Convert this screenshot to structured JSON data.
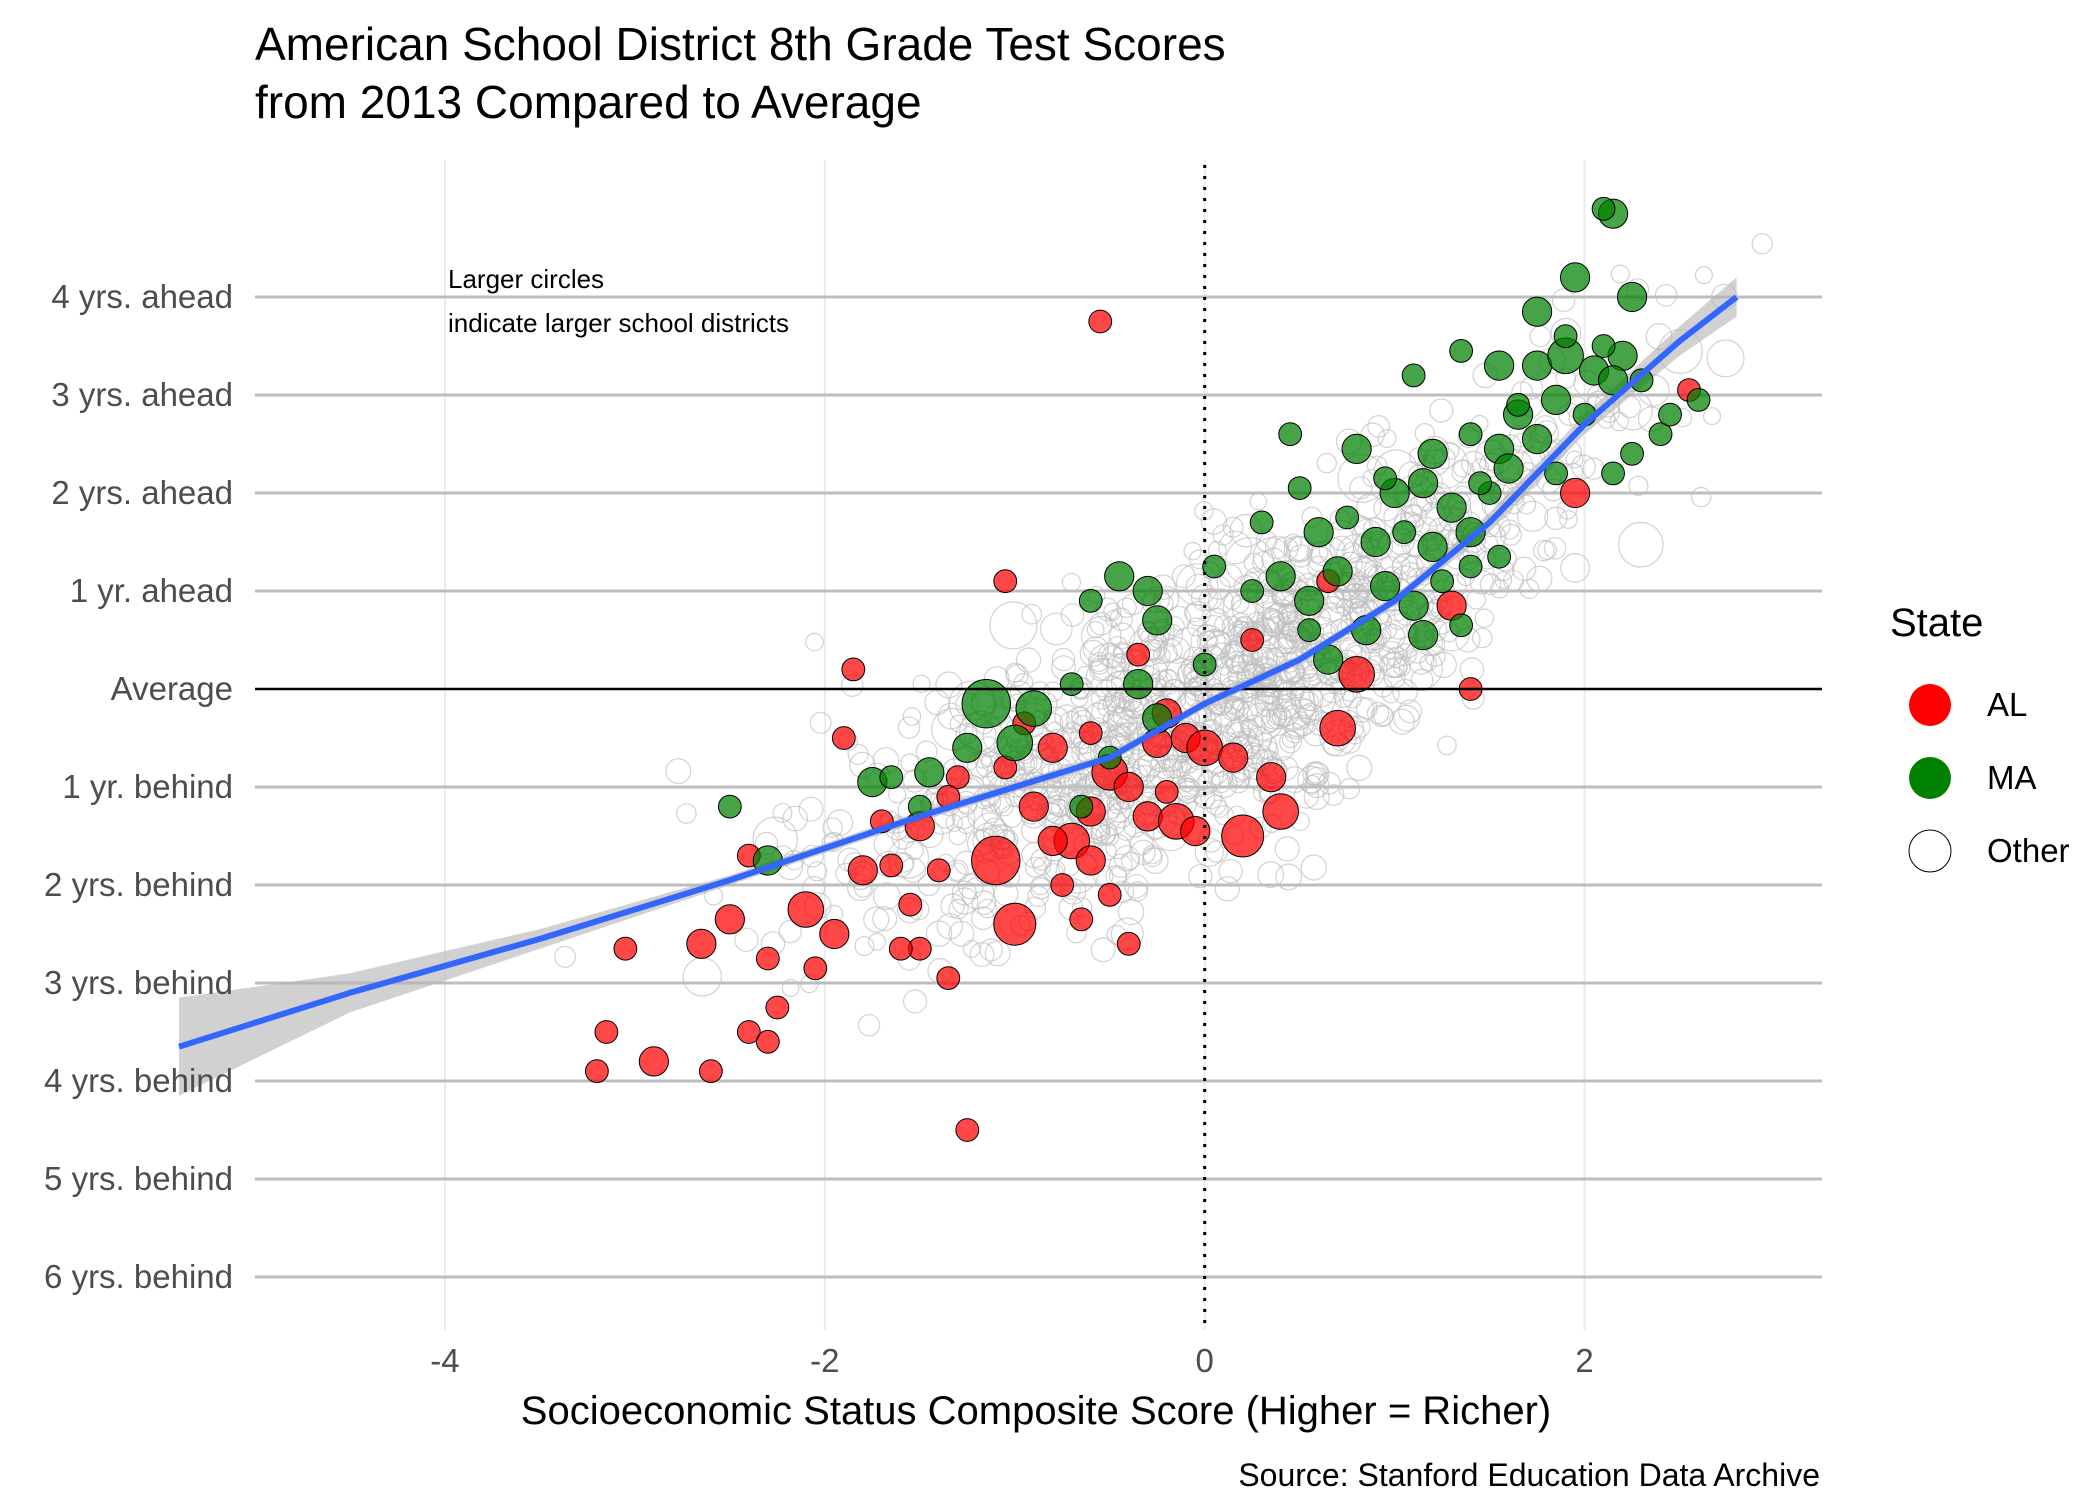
{
  "chart_data": {
    "type": "scatter",
    "title_lines": [
      "American School District 8th Grade Test Scores",
      "from 2013 Compared to Average"
    ],
    "xlabel": "Socioeconomic Status Composite Score (Higher = Richer)",
    "ylabel": "",
    "source": "Source: Stanford Education Data Archive",
    "annotation_lines": [
      "Larger circles",
      "indicate larger school districts"
    ],
    "xlim": [
      -5.0,
      3.25
    ],
    "ylim": [
      -6.6,
      5.2
    ],
    "x_ticks": [
      {
        "value": -4,
        "label": "-4"
      },
      {
        "value": -2,
        "label": "-2"
      },
      {
        "value": 0,
        "label": "0"
      },
      {
        "value": 2,
        "label": "2"
      }
    ],
    "y_ticks": [
      {
        "value": 4,
        "label": "4 yrs. ahead"
      },
      {
        "value": 3,
        "label": "3 yrs. ahead"
      },
      {
        "value": 2,
        "label": "2 yrs. ahead"
      },
      {
        "value": 1,
        "label": "1 yr. ahead"
      },
      {
        "value": 0,
        "label": "Average"
      },
      {
        "value": -1,
        "label": "1 yr. behind"
      },
      {
        "value": -2,
        "label": "2 yrs. behind"
      },
      {
        "value": -3,
        "label": "3 yrs. behind"
      },
      {
        "value": -4,
        "label": "4 yrs. behind"
      },
      {
        "value": -5,
        "label": "5 yrs. behind"
      },
      {
        "value": -6,
        "label": "6 yrs. behind"
      }
    ],
    "reference_lines": {
      "horizontal_y": 0,
      "vertical_dotted_x": 0
    },
    "grid": true,
    "legend": {
      "title": "State",
      "position": "right",
      "entries": [
        {
          "label": "AL",
          "color": "#ff0000"
        },
        {
          "label": "MA",
          "color": "#008000"
        },
        {
          "label": "Other",
          "color": "#ffffff"
        }
      ]
    },
    "colors": {
      "AL": "#ff0000",
      "MA": "#008000",
      "other_stroke": "#bfbfbf",
      "trend": "#3366ff",
      "band": "#b3b3b3"
    },
    "trend_line": {
      "x": [
        -5.4,
        -4.5,
        -3.5,
        -2.5,
        -1.5,
        -0.5,
        0.0,
        0.5,
        1.0,
        1.5,
        2.0,
        2.5,
        2.8
      ],
      "y": [
        -3.65,
        -3.1,
        -2.55,
        -1.95,
        -1.3,
        -0.7,
        -0.15,
        0.3,
        0.9,
        1.7,
        2.7,
        3.55,
        4.0
      ],
      "lower": [
        -4.15,
        -3.3,
        -2.65,
        -2.0,
        -1.35,
        -0.75,
        -0.2,
        0.25,
        0.85,
        1.6,
        2.6,
        3.4,
        3.8
      ],
      "upper": [
        -3.15,
        -2.9,
        -2.45,
        -1.9,
        -1.25,
        -0.65,
        -0.1,
        0.35,
        0.95,
        1.8,
        2.8,
        3.7,
        4.2
      ]
    },
    "series": [
      {
        "name": "AL",
        "points": [
          {
            "x": -0.55,
            "y": 3.75,
            "size": 2
          },
          {
            "x": 2.55,
            "y": 3.05,
            "size": 2
          },
          {
            "x": 1.95,
            "y": 2.0,
            "size": 3
          },
          {
            "x": 1.3,
            "y": 0.85,
            "size": 3
          },
          {
            "x": 0.8,
            "y": 0.15,
            "size": 4
          },
          {
            "x": 0.7,
            "y": -0.4,
            "size": 4
          },
          {
            "x": 1.4,
            "y": 0.0,
            "size": 2
          },
          {
            "x": 0.65,
            "y": 1.1,
            "size": 2
          },
          {
            "x": -1.85,
            "y": 0.2,
            "size": 2
          },
          {
            "x": -1.9,
            "y": -0.5,
            "size": 2
          },
          {
            "x": -2.4,
            "y": -1.7,
            "size": 2
          },
          {
            "x": -2.1,
            "y": -2.25,
            "size": 4
          },
          {
            "x": -2.5,
            "y": -2.35,
            "size": 3
          },
          {
            "x": -2.65,
            "y": -2.6,
            "size": 3
          },
          {
            "x": -1.95,
            "y": -2.5,
            "size": 3
          },
          {
            "x": -2.05,
            "y": -2.85,
            "size": 2
          },
          {
            "x": -2.3,
            "y": -2.75,
            "size": 2
          },
          {
            "x": -2.25,
            "y": -3.25,
            "size": 2
          },
          {
            "x": -2.4,
            "y": -3.5,
            "size": 2
          },
          {
            "x": -2.3,
            "y": -3.6,
            "size": 2
          },
          {
            "x": -3.15,
            "y": -3.5,
            "size": 2
          },
          {
            "x": -2.9,
            "y": -3.8,
            "size": 3
          },
          {
            "x": -3.2,
            "y": -3.9,
            "size": 2
          },
          {
            "x": -2.6,
            "y": -3.9,
            "size": 2
          },
          {
            "x": -3.05,
            "y": -2.65,
            "size": 2
          },
          {
            "x": -1.25,
            "y": -4.5,
            "size": 2
          },
          {
            "x": -1.35,
            "y": -2.95,
            "size": 2
          },
          {
            "x": -1.5,
            "y": -2.65,
            "size": 2
          },
          {
            "x": -1.1,
            "y": -1.75,
            "size": 6
          },
          {
            "x": -1.0,
            "y": -2.4,
            "size": 5
          },
          {
            "x": -0.7,
            "y": -1.55,
            "size": 4
          },
          {
            "x": -0.9,
            "y": -1.2,
            "size": 3
          },
          {
            "x": -0.6,
            "y": -1.25,
            "size": 3
          },
          {
            "x": -0.5,
            "y": -0.85,
            "size": 4
          },
          {
            "x": -0.4,
            "y": -1.0,
            "size": 3
          },
          {
            "x": -0.3,
            "y": -1.3,
            "size": 3
          },
          {
            "x": -0.2,
            "y": -1.05,
            "size": 2
          },
          {
            "x": -0.1,
            "y": -0.5,
            "size": 3
          },
          {
            "x": 0.0,
            "y": -0.6,
            "size": 4
          },
          {
            "x": 0.15,
            "y": -0.7,
            "size": 3
          },
          {
            "x": 0.2,
            "y": -1.5,
            "size": 5
          },
          {
            "x": 0.35,
            "y": -0.9,
            "size": 3
          },
          {
            "x": 0.4,
            "y": -1.25,
            "size": 4
          },
          {
            "x": -0.15,
            "y": -1.35,
            "size": 4
          },
          {
            "x": -0.05,
            "y": -1.45,
            "size": 3
          },
          {
            "x": -0.25,
            "y": -0.55,
            "size": 3
          },
          {
            "x": -0.8,
            "y": -0.6,
            "size": 3
          },
          {
            "x": -1.05,
            "y": -0.8,
            "size": 2
          },
          {
            "x": -1.3,
            "y": -0.9,
            "size": 2
          },
          {
            "x": -1.35,
            "y": -1.1,
            "size": 2
          },
          {
            "x": -1.5,
            "y": -1.4,
            "size": 3
          },
          {
            "x": -1.7,
            "y": -1.35,
            "size": 2
          },
          {
            "x": -1.8,
            "y": -1.85,
            "size": 3
          },
          {
            "x": -1.65,
            "y": -1.8,
            "size": 2
          },
          {
            "x": -1.4,
            "y": -1.85,
            "size": 2
          },
          {
            "x": -1.55,
            "y": -2.2,
            "size": 2
          },
          {
            "x": -1.6,
            "y": -2.65,
            "size": 2
          },
          {
            "x": -0.8,
            "y": -1.55,
            "size": 3
          },
          {
            "x": -0.6,
            "y": -1.75,
            "size": 3
          },
          {
            "x": -0.5,
            "y": -2.1,
            "size": 2
          },
          {
            "x": -0.75,
            "y": -2.0,
            "size": 2
          },
          {
            "x": -0.65,
            "y": -2.35,
            "size": 2
          },
          {
            "x": -0.4,
            "y": -2.6,
            "size": 2
          },
          {
            "x": -0.2,
            "y": -0.25,
            "size": 3
          },
          {
            "x": -0.35,
            "y": 0.35,
            "size": 2
          },
          {
            "x": 0.25,
            "y": 0.5,
            "size": 2
          },
          {
            "x": -0.6,
            "y": -0.45,
            "size": 2
          },
          {
            "x": -0.95,
            "y": -0.35,
            "size": 2
          },
          {
            "x": -1.05,
            "y": 1.1,
            "size": 2
          }
        ]
      },
      {
        "name": "MA",
        "points": [
          {
            "x": 2.15,
            "y": 4.85,
            "size": 3
          },
          {
            "x": 2.1,
            "y": 4.9,
            "size": 2
          },
          {
            "x": 1.95,
            "y": 4.2,
            "size": 3
          },
          {
            "x": 2.25,
            "y": 4.0,
            "size": 3
          },
          {
            "x": 1.75,
            "y": 3.85,
            "size": 3
          },
          {
            "x": 1.35,
            "y": 3.45,
            "size": 2
          },
          {
            "x": 1.1,
            "y": 3.2,
            "size": 2
          },
          {
            "x": 1.55,
            "y": 3.3,
            "size": 3
          },
          {
            "x": 1.75,
            "y": 3.3,
            "size": 3
          },
          {
            "x": 1.9,
            "y": 3.4,
            "size": 4
          },
          {
            "x": 2.05,
            "y": 3.25,
            "size": 3
          },
          {
            "x": 2.2,
            "y": 3.4,
            "size": 3
          },
          {
            "x": 2.15,
            "y": 3.15,
            "size": 3
          },
          {
            "x": 2.3,
            "y": 3.15,
            "size": 2
          },
          {
            "x": 1.85,
            "y": 2.95,
            "size": 3
          },
          {
            "x": 1.65,
            "y": 2.8,
            "size": 3
          },
          {
            "x": 2.0,
            "y": 2.8,
            "size": 2
          },
          {
            "x": 2.25,
            "y": 2.4,
            "size": 2
          },
          {
            "x": 2.4,
            "y": 2.6,
            "size": 2
          },
          {
            "x": 2.6,
            "y": 2.95,
            "size": 2
          },
          {
            "x": 2.45,
            "y": 2.8,
            "size": 2
          },
          {
            "x": 1.55,
            "y": 2.45,
            "size": 3
          },
          {
            "x": 1.75,
            "y": 2.55,
            "size": 3
          },
          {
            "x": 1.4,
            "y": 2.6,
            "size": 2
          },
          {
            "x": 1.2,
            "y": 2.4,
            "size": 3
          },
          {
            "x": 0.8,
            "y": 2.45,
            "size": 3
          },
          {
            "x": 1.0,
            "y": 2.0,
            "size": 3
          },
          {
            "x": 1.15,
            "y": 2.1,
            "size": 3
          },
          {
            "x": 1.3,
            "y": 1.85,
            "size": 3
          },
          {
            "x": 1.5,
            "y": 2.0,
            "size": 2
          },
          {
            "x": 1.6,
            "y": 2.25,
            "size": 3
          },
          {
            "x": 1.85,
            "y": 2.2,
            "size": 2
          },
          {
            "x": 2.15,
            "y": 2.2,
            "size": 2
          },
          {
            "x": 0.45,
            "y": 2.6,
            "size": 2
          },
          {
            "x": 0.5,
            "y": 2.05,
            "size": 2
          },
          {
            "x": 0.3,
            "y": 1.7,
            "size": 2
          },
          {
            "x": 0.6,
            "y": 1.6,
            "size": 3
          },
          {
            "x": 0.9,
            "y": 1.5,
            "size": 3
          },
          {
            "x": 1.2,
            "y": 1.45,
            "size": 3
          },
          {
            "x": 1.4,
            "y": 1.6,
            "size": 3
          },
          {
            "x": 1.55,
            "y": 1.35,
            "size": 2
          },
          {
            "x": 0.7,
            "y": 1.2,
            "size": 3
          },
          {
            "x": 0.95,
            "y": 1.05,
            "size": 3
          },
          {
            "x": 1.1,
            "y": 0.85,
            "size": 3
          },
          {
            "x": 0.55,
            "y": 0.9,
            "size": 3
          },
          {
            "x": 0.4,
            "y": 1.15,
            "size": 3
          },
          {
            "x": 0.25,
            "y": 1.0,
            "size": 2
          },
          {
            "x": 0.85,
            "y": 0.6,
            "size": 3
          },
          {
            "x": 1.15,
            "y": 0.55,
            "size": 3
          },
          {
            "x": 1.35,
            "y": 0.65,
            "size": 2
          },
          {
            "x": 0.65,
            "y": 0.3,
            "size": 3
          },
          {
            "x": 0.05,
            "y": 1.25,
            "size": 2
          },
          {
            "x": -0.45,
            "y": 1.15,
            "size": 3
          },
          {
            "x": -0.3,
            "y": 1.0,
            "size": 3
          },
          {
            "x": -0.6,
            "y": 0.9,
            "size": 2
          },
          {
            "x": -0.25,
            "y": 0.7,
            "size": 3
          },
          {
            "x": 0.0,
            "y": 0.25,
            "size": 2
          },
          {
            "x": -0.35,
            "y": 0.05,
            "size": 3
          },
          {
            "x": -0.25,
            "y": -0.3,
            "size": 3
          },
          {
            "x": -0.7,
            "y": 0.05,
            "size": 2
          },
          {
            "x": -0.9,
            "y": -0.2,
            "size": 4
          },
          {
            "x": -1.15,
            "y": -0.15,
            "size": 6
          },
          {
            "x": -1.0,
            "y": -0.55,
            "size": 4
          },
          {
            "x": -1.25,
            "y": -0.6,
            "size": 3
          },
          {
            "x": -1.45,
            "y": -0.85,
            "size": 3
          },
          {
            "x": -1.75,
            "y": -0.95,
            "size": 3
          },
          {
            "x": -1.65,
            "y": -0.9,
            "size": 2
          },
          {
            "x": -2.3,
            "y": -1.75,
            "size": 3
          },
          {
            "x": -2.5,
            "y": -1.2,
            "size": 2
          },
          {
            "x": -1.5,
            "y": -1.2,
            "size": 2
          },
          {
            "x": -0.65,
            "y": -1.2,
            "size": 2
          },
          {
            "x": -0.5,
            "y": -0.7,
            "size": 2
          },
          {
            "x": 0.55,
            "y": 0.6,
            "size": 2
          },
          {
            "x": 1.4,
            "y": 1.25,
            "size": 2
          },
          {
            "x": 1.25,
            "y": 1.1,
            "size": 2
          },
          {
            "x": 1.05,
            "y": 1.6,
            "size": 2
          },
          {
            "x": 0.75,
            "y": 1.75,
            "size": 2
          },
          {
            "x": 0.95,
            "y": 2.15,
            "size": 2
          },
          {
            "x": 1.45,
            "y": 2.1,
            "size": 2
          },
          {
            "x": 1.65,
            "y": 2.9,
            "size": 2
          },
          {
            "x": 1.9,
            "y": 3.6,
            "size": 2
          },
          {
            "x": 2.1,
            "y": 3.5,
            "size": 2
          }
        ]
      }
    ]
  }
}
